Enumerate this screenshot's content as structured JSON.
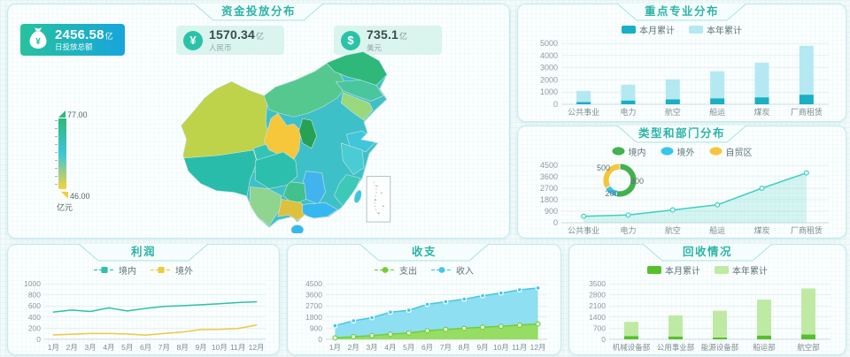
{
  "panels": {
    "fund": {
      "title": "资金投放分布",
      "kpis": [
        {
          "icon": "money-bag",
          "value": "2456.58",
          "unit": "亿",
          "label": "日投放总额"
        },
        {
          "icon": "yuan-circle",
          "symbol": "¥",
          "value": "1570.34",
          "unit": "亿",
          "label": "人民币"
        },
        {
          "icon": "dollar-circle",
          "symbol": "$",
          "value": "735.1",
          "unit": "亿",
          "label": "美元"
        }
      ],
      "visual_map": {
        "max": "77.00",
        "min": "46.00",
        "unit": "亿元",
        "colors": [
          "#2eb87a",
          "#3cc6d8",
          "#f5d33c"
        ]
      }
    },
    "key_industry": {
      "title": "重点专业分布"
    },
    "type_dept": {
      "title": "类型和部门分布"
    },
    "profit": {
      "title": "利润"
    },
    "balance": {
      "title": "收支"
    },
    "recovery": {
      "title": "回收情况"
    }
  },
  "chart_data": [
    {
      "id": "key_industry",
      "type": "bar",
      "stacked": true,
      "legend_position": "top",
      "grid": true,
      "categories": [
        "公共事业",
        "电力",
        "航空",
        "船运",
        "煤炭",
        "厂商租赁"
      ],
      "series": [
        {
          "name": "本月累计",
          "color": "#19afc4",
          "values": [
            180,
            300,
            400,
            480,
            560,
            780
          ]
        },
        {
          "name": "本年累计",
          "color": "#b4e9f1",
          "values": [
            1100,
            1600,
            2050,
            2700,
            3400,
            4800
          ]
        }
      ],
      "ylim": [
        0,
        5000
      ],
      "yticks": [
        0,
        1000,
        2000,
        3000,
        4000,
        5000
      ]
    },
    {
      "id": "type_dept",
      "type": "area",
      "legend_position": "top",
      "grid": true,
      "categories": [
        "公共事业",
        "电力",
        "航空",
        "船运",
        "煤炭",
        "厂商租赁"
      ],
      "series": [
        {
          "color": "#3ecfc0",
          "fill": "rgba(62,207,192,0.20)",
          "values": [
            500,
            600,
            1000,
            1400,
            2700,
            3900
          ]
        }
      ],
      "ylim": [
        0,
        4500
      ],
      "yticks": [
        0,
        900,
        1800,
        2700,
        3600,
        4500
      ],
      "donut": {
        "values": [
          {
            "name": "境内",
            "color": "#43b14f",
            "value": 800
          },
          {
            "name": "境外",
            "color": "#38c6ea",
            "value": 200
          },
          {
            "name": "自贸区",
            "color": "#f4c63d",
            "value": 500
          }
        ]
      }
    },
    {
      "id": "profit",
      "type": "line",
      "legend_position": "top",
      "grid": true,
      "categories": [
        "1月",
        "2月",
        "3月",
        "4月",
        "5月",
        "6月",
        "7月",
        "8月",
        "9月",
        "10月",
        "11月",
        "12月"
      ],
      "series": [
        {
          "name": "境内",
          "color": "#2fc1a4",
          "values": [
            490,
            525,
            500,
            565,
            510,
            555,
            590,
            605,
            620,
            640,
            660,
            675
          ]
        },
        {
          "name": "境外",
          "color": "#eccb3e",
          "values": [
            80,
            90,
            105,
            105,
            95,
            75,
            105,
            130,
            175,
            180,
            195,
            255
          ]
        }
      ],
      "ylim": [
        0,
        1000
      ],
      "yticks": [
        0,
        200,
        400,
        600,
        800,
        1000
      ]
    },
    {
      "id": "balance",
      "type": "area",
      "legend_position": "top",
      "grid": true,
      "categories": [
        "1月",
        "2月",
        "3月",
        "4月",
        "5月",
        "6月",
        "7月",
        "8月",
        "9月",
        "10月",
        "11月",
        "12月"
      ],
      "series": [
        {
          "name": "支出",
          "color": "#72cf35",
          "fill": "#96dd64",
          "values": [
            120,
            210,
            300,
            420,
            510,
            700,
            800,
            890,
            980,
            1050,
            1150,
            1240
          ]
        },
        {
          "name": "收入",
          "color": "#45c6e6",
          "fill": "#8edff2",
          "values": [
            1100,
            1500,
            1750,
            2200,
            2350,
            2830,
            3040,
            3250,
            3530,
            3740,
            4000,
            4150
          ]
        }
      ],
      "ylim": [
        0,
        4500
      ],
      "yticks": [
        0,
        900,
        1800,
        2700,
        3600,
        4500
      ]
    },
    {
      "id": "recovery",
      "type": "bar",
      "stacked": true,
      "legend_position": "top",
      "grid": true,
      "categories": [
        "机械设备部",
        "公用事业部",
        "能源设备部",
        "船运部",
        "航空部"
      ],
      "series": [
        {
          "name": "本月累计",
          "color": "#56c02c",
          "values": [
            200,
            170,
            110,
            230,
            300
          ]
        },
        {
          "name": "本年累计",
          "color": "#bfeaa4",
          "values": [
            1100,
            1500,
            1800,
            2500,
            3200
          ]
        }
      ],
      "ylim": [
        0,
        3500
      ],
      "yticks": [
        0,
        700,
        1400,
        2100,
        2800,
        3500
      ]
    }
  ]
}
